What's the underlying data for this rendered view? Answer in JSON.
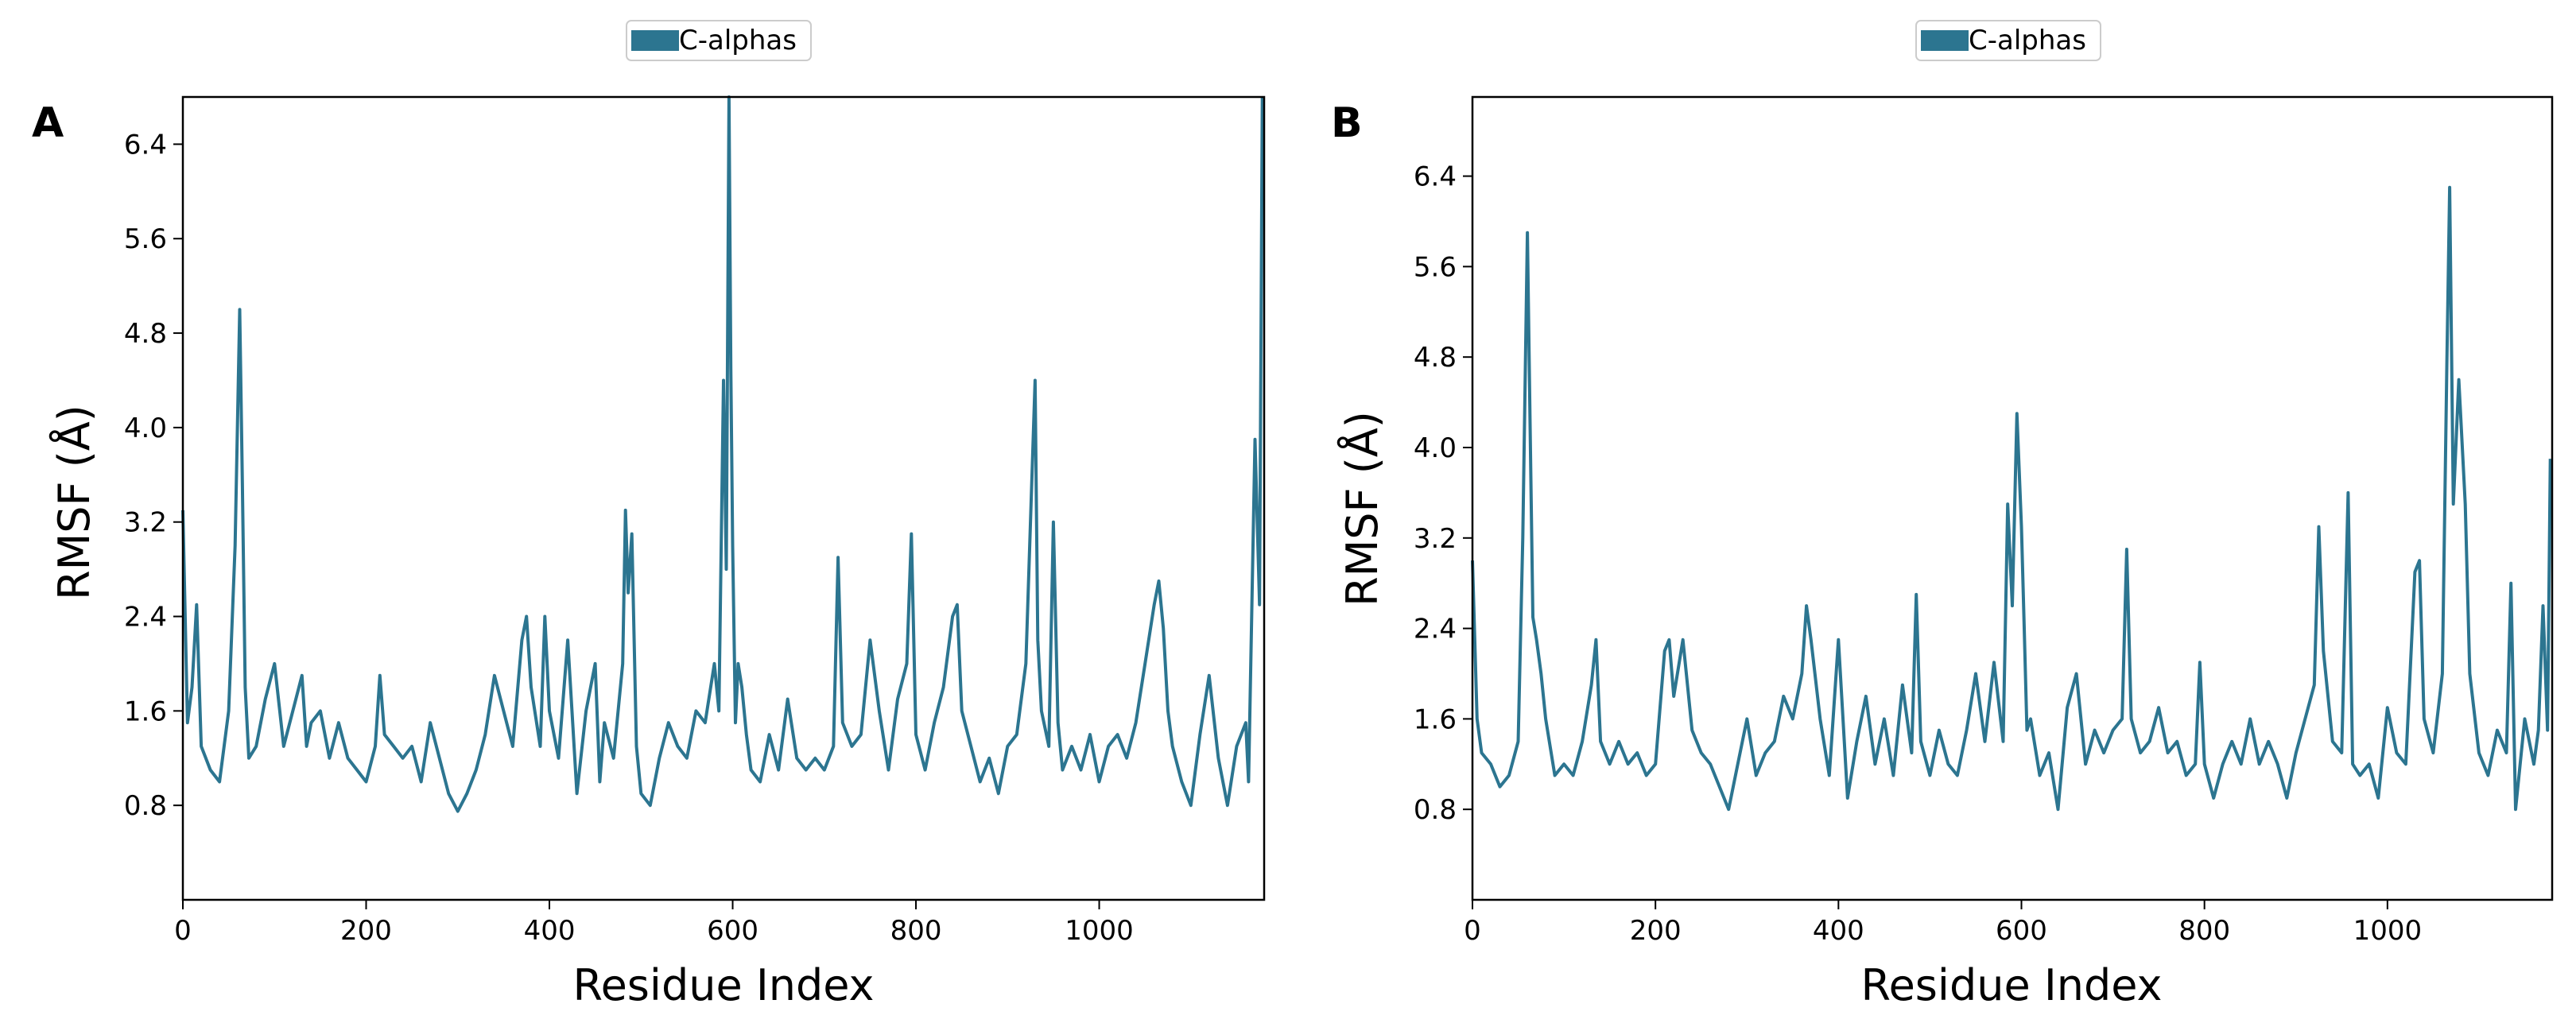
{
  "chart_data": [
    {
      "type": "line",
      "panel_label": "A",
      "xlabel": "Residue Index",
      "ylabel": "RMSF (Å)",
      "xlim": [
        0,
        1180
      ],
      "ylim": [
        0,
        6.8
      ],
      "xticks": [
        0,
        200,
        400,
        600,
        800,
        1000
      ],
      "yticks": [
        0.8,
        1.6,
        2.4,
        3.2,
        4.0,
        4.8,
        5.6,
        6.4
      ],
      "legend": {
        "label": "C-alphas",
        "placement": "top-center"
      },
      "color": "#2c7590",
      "series": [
        {
          "name": "C-alphas",
          "x": [
            0,
            5,
            10,
            15,
            20,
            30,
            40,
            50,
            57,
            62,
            65,
            68,
            72,
            80,
            90,
            100,
            110,
            120,
            130,
            135,
            140,
            150,
            160,
            170,
            180,
            190,
            200,
            210,
            215,
            220,
            230,
            240,
            250,
            260,
            270,
            280,
            290,
            300,
            310,
            320,
            330,
            340,
            350,
            360,
            370,
            375,
            380,
            390,
            395,
            400,
            410,
            420,
            430,
            440,
            450,
            455,
            460,
            470,
            480,
            483,
            486,
            490,
            495,
            500,
            510,
            520,
            530,
            540,
            550,
            560,
            570,
            580,
            585,
            590,
            593,
            596,
            598,
            600,
            603,
            606,
            610,
            615,
            620,
            630,
            640,
            650,
            660,
            670,
            680,
            690,
            700,
            710,
            715,
            720,
            730,
            740,
            750,
            760,
            770,
            780,
            790,
            795,
            800,
            810,
            820,
            830,
            840,
            845,
            850,
            860,
            870,
            880,
            890,
            900,
            910,
            920,
            930,
            933,
            937,
            945,
            950,
            955,
            960,
            970,
            980,
            990,
            1000,
            1010,
            1020,
            1030,
            1040,
            1050,
            1060,
            1065,
            1070,
            1075,
            1080,
            1090,
            1100,
            1110,
            1120,
            1130,
            1140,
            1150,
            1160,
            1163,
            1170,
            1175,
            1178
          ],
          "values": [
            3.3,
            1.5,
            1.8,
            2.5,
            1.3,
            1.1,
            1.0,
            1.6,
            3.0,
            5.0,
            3.5,
            1.8,
            1.2,
            1.3,
            1.7,
            2.0,
            1.3,
            1.6,
            1.9,
            1.3,
            1.5,
            1.6,
            1.2,
            1.5,
            1.2,
            1.1,
            1.0,
            1.3,
            1.9,
            1.4,
            1.3,
            1.2,
            1.3,
            1.0,
            1.5,
            1.2,
            0.9,
            0.75,
            0.9,
            1.1,
            1.4,
            1.9,
            1.6,
            1.3,
            2.2,
            2.4,
            1.8,
            1.3,
            2.4,
            1.6,
            1.2,
            2.2,
            0.9,
            1.6,
            2.0,
            1.0,
            1.5,
            1.2,
            2.0,
            3.3,
            2.6,
            3.1,
            1.3,
            0.9,
            0.8,
            1.2,
            1.5,
            1.3,
            1.2,
            1.6,
            1.5,
            2.0,
            1.6,
            4.4,
            2.8,
            6.8,
            4.5,
            3.0,
            1.5,
            2.0,
            1.8,
            1.4,
            1.1,
            1.0,
            1.4,
            1.1,
            1.7,
            1.2,
            1.1,
            1.2,
            1.1,
            1.3,
            2.9,
            1.5,
            1.3,
            1.4,
            2.2,
            1.6,
            1.1,
            1.7,
            2.0,
            3.1,
            1.4,
            1.1,
            1.5,
            1.8,
            2.4,
            2.5,
            1.6,
            1.3,
            1.0,
            1.2,
            0.9,
            1.3,
            1.4,
            2.0,
            4.4,
            2.2,
            1.6,
            1.3,
            3.2,
            1.5,
            1.1,
            1.3,
            1.1,
            1.4,
            1.0,
            1.3,
            1.4,
            1.2,
            1.5,
            2.0,
            2.5,
            2.7,
            2.3,
            1.6,
            1.3,
            1.0,
            0.8,
            1.4,
            1.9,
            1.2,
            0.8,
            1.3,
            1.5,
            1.0,
            3.9,
            2.5,
            6.8
          ]
        }
      ]
    },
    {
      "type": "line",
      "panel_label": "B",
      "xlabel": "Residue Index",
      "ylabel": "RMSF (Å)",
      "xlim": [
        0,
        1180
      ],
      "ylim": [
        0,
        7.1
      ],
      "xticks": [
        0,
        200,
        400,
        600,
        800,
        1000
      ],
      "yticks": [
        0.8,
        1.6,
        2.4,
        3.2,
        4.0,
        4.8,
        5.6,
        6.4
      ],
      "legend": {
        "label": "C-alphas",
        "placement": "top-center"
      },
      "color": "#2c7590",
      "series": [
        {
          "name": "C-alphas",
          "x": [
            0,
            5,
            10,
            20,
            30,
            40,
            50,
            55,
            60,
            63,
            66,
            70,
            75,
            80,
            90,
            100,
            110,
            120,
            130,
            135,
            140,
            150,
            160,
            170,
            180,
            190,
            200,
            210,
            215,
            220,
            230,
            240,
            250,
            260,
            270,
            280,
            290,
            300,
            310,
            320,
            330,
            340,
            350,
            360,
            365,
            370,
            380,
            390,
            400,
            410,
            420,
            430,
            440,
            450,
            460,
            470,
            480,
            485,
            490,
            500,
            510,
            520,
            530,
            540,
            550,
            560,
            570,
            580,
            585,
            590,
            595,
            600,
            603,
            606,
            610,
            620,
            630,
            640,
            650,
            660,
            670,
            680,
            690,
            700,
            710,
            715,
            720,
            730,
            740,
            750,
            760,
            770,
            780,
            790,
            795,
            800,
            810,
            820,
            830,
            840,
            850,
            860,
            870,
            880,
            890,
            900,
            910,
            920,
            925,
            930,
            940,
            950,
            957,
            962,
            970,
            980,
            990,
            1000,
            1010,
            1020,
            1030,
            1035,
            1040,
            1050,
            1060,
            1065,
            1068,
            1072,
            1078,
            1085,
            1090,
            1100,
            1110,
            1120,
            1130,
            1135,
            1140,
            1150,
            1160,
            1165,
            1170,
            1175,
            1178
          ],
          "values": [
            3.0,
            1.6,
            1.3,
            1.2,
            1.0,
            1.1,
            1.4,
            3.2,
            5.9,
            4.2,
            2.5,
            2.3,
            2.0,
            1.6,
            1.1,
            1.2,
            1.1,
            1.4,
            1.9,
            2.3,
            1.4,
            1.2,
            1.4,
            1.2,
            1.3,
            1.1,
            1.2,
            2.2,
            2.3,
            1.8,
            2.3,
            1.5,
            1.3,
            1.2,
            1.0,
            0.8,
            1.2,
            1.6,
            1.1,
            1.3,
            1.4,
            1.8,
            1.6,
            2.0,
            2.6,
            2.3,
            1.6,
            1.1,
            2.3,
            0.9,
            1.4,
            1.8,
            1.2,
            1.6,
            1.1,
            1.9,
            1.3,
            2.7,
            1.4,
            1.1,
            1.5,
            1.2,
            1.1,
            1.5,
            2.0,
            1.4,
            2.1,
            1.4,
            3.5,
            2.6,
            4.3,
            3.3,
            2.4,
            1.5,
            1.6,
            1.1,
            1.3,
            0.8,
            1.7,
            2.0,
            1.2,
            1.5,
            1.3,
            1.5,
            1.6,
            3.1,
            1.6,
            1.3,
            1.4,
            1.7,
            1.3,
            1.4,
            1.1,
            1.2,
            2.1,
            1.2,
            0.9,
            1.2,
            1.4,
            1.2,
            1.6,
            1.2,
            1.4,
            1.2,
            0.9,
            1.3,
            1.6,
            1.9,
            3.3,
            2.2,
            1.4,
            1.3,
            3.6,
            1.2,
            1.1,
            1.2,
            0.9,
            1.7,
            1.3,
            1.2,
            2.9,
            3.0,
            1.6,
            1.3,
            2.0,
            4.8,
            6.3,
            3.5,
            4.6,
            3.5,
            2.0,
            1.3,
            1.1,
            1.5,
            1.3,
            2.8,
            0.8,
            1.6,
            1.2,
            1.5,
            2.6,
            1.5,
            3.9
          ]
        }
      ]
    }
  ]
}
